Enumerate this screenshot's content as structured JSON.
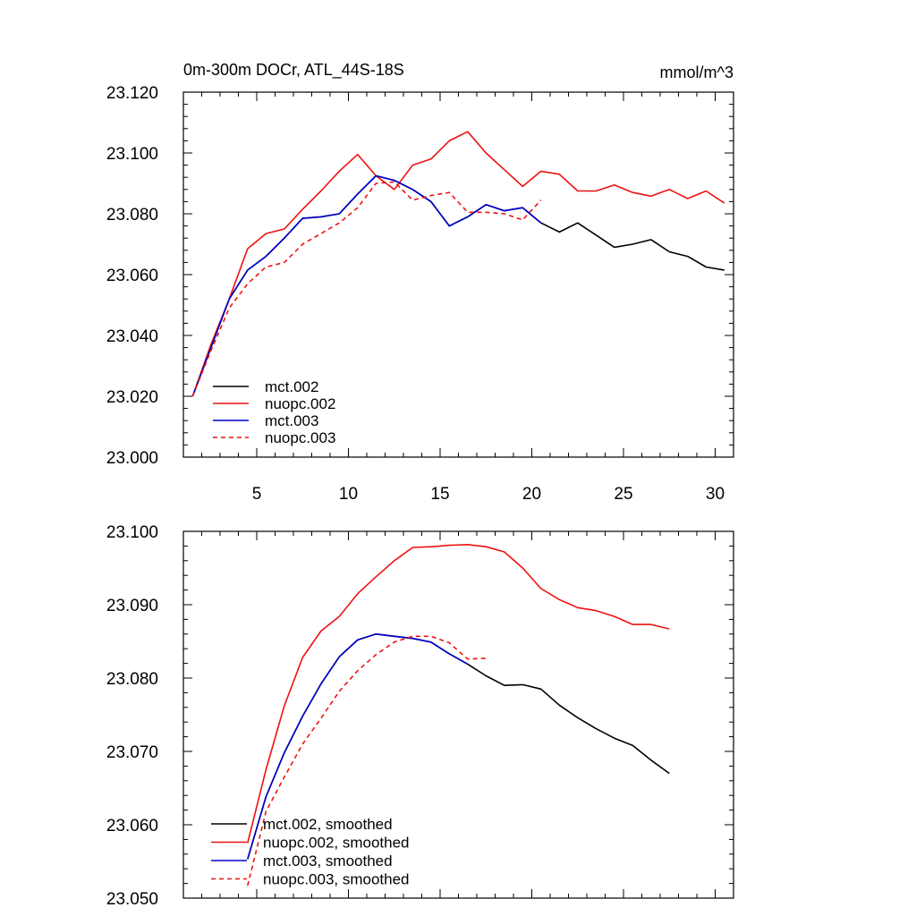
{
  "chart_data": [
    {
      "type": "line",
      "title_left": "0m-300m DOCr, ATL_44S-18S",
      "title_right": "mmol/m^3",
      "xlim": [
        1,
        31
      ],
      "ylim": [
        23.0,
        23.12
      ],
      "x_ticks": [
        5,
        10,
        15,
        20,
        25,
        30
      ],
      "x_tick_labels": [
        "5",
        "10",
        "15",
        "20",
        "25",
        "30"
      ],
      "y_ticks": [
        23.0,
        23.02,
        23.04,
        23.06,
        23.08,
        23.1,
        23.12
      ],
      "y_tick_labels": [
        "23.000",
        "23.020",
        "23.040",
        "23.060",
        "23.080",
        "23.100",
        "23.120"
      ],
      "series": [
        {
          "name": "mct.002",
          "color": "#000000",
          "dash": false,
          "x": [
            1.5,
            2.5,
            3.5,
            4.5,
            5.5,
            6.5,
            7.5,
            8.5,
            9.5,
            10.5,
            11.5,
            12.5,
            13.5,
            14.5,
            15.5,
            16.5,
            17.5,
            18.5,
            19.5,
            20.5,
            21.5,
            22.5,
            23.5,
            24.5,
            25.5,
            26.5,
            27.5,
            28.5,
            29.5,
            30.5
          ],
          "values": [
            23.02,
            23.036,
            23.052,
            23.0615,
            23.066,
            23.072,
            23.0785,
            23.079,
            23.08,
            23.0865,
            23.0925,
            23.091,
            23.088,
            23.084,
            23.076,
            23.079,
            23.083,
            23.081,
            23.082,
            23.077,
            23.074,
            23.077,
            23.073,
            23.069,
            23.07,
            23.0715,
            23.0675,
            23.066,
            23.0625,
            23.0615
          ]
        },
        {
          "name": "nuopc.002",
          "color": "#ee1111",
          "dash": false,
          "x": [
            1.5,
            2.5,
            3.5,
            4.5,
            5.5,
            6.5,
            7.5,
            8.5,
            9.5,
            10.5,
            11.5,
            12.5,
            13.5,
            14.5,
            15.5,
            16.5,
            17.5,
            18.5,
            19.5,
            20.5,
            21.5,
            22.5,
            23.5,
            24.5,
            25.5,
            26.5,
            27.5,
            28.5,
            29.5,
            30.5
          ],
          "values": [
            23.02,
            23.037,
            23.052,
            23.0685,
            23.0735,
            23.075,
            23.0815,
            23.0875,
            23.094,
            23.0995,
            23.0925,
            23.088,
            23.096,
            23.098,
            23.104,
            23.107,
            23.1,
            23.0945,
            23.089,
            23.094,
            23.093,
            23.0875,
            23.0875,
            23.0895,
            23.087,
            23.0858,
            23.088,
            23.085,
            23.0875,
            23.0835
          ]
        },
        {
          "name": "mct.003",
          "color": "#0000cc",
          "dash": false,
          "x": [
            1.5,
            2.5,
            3.5,
            4.5,
            5.5,
            6.5,
            7.5,
            8.5,
            9.5,
            10.5,
            11.5,
            12.5,
            13.5,
            14.5,
            15.5,
            16.5,
            17.5,
            18.5,
            19.5,
            20.5
          ],
          "values": [
            23.02,
            23.036,
            23.052,
            23.0615,
            23.066,
            23.072,
            23.0785,
            23.079,
            23.08,
            23.0865,
            23.0925,
            23.091,
            23.088,
            23.084,
            23.076,
            23.079,
            23.083,
            23.081,
            23.082,
            23.077
          ]
        },
        {
          "name": "nuopc.003",
          "color": "#ee1111",
          "dash": true,
          "x": [
            1.5,
            2.5,
            3.5,
            4.5,
            5.5,
            6.5,
            7.5,
            8.5,
            9.5,
            10.5,
            11.5,
            12.5,
            13.5,
            14.5,
            15.5,
            16.5,
            17.5,
            18.5,
            19.5,
            20.5
          ],
          "values": [
            23.02,
            23.035,
            23.049,
            23.057,
            23.0625,
            23.064,
            23.07,
            23.0735,
            23.077,
            23.082,
            23.09,
            23.0905,
            23.0845,
            23.086,
            23.087,
            23.0805,
            23.0805,
            23.08,
            23.078,
            23.0845
          ]
        }
      ]
    },
    {
      "type": "line",
      "xlim": [
        1,
        31
      ],
      "ylim": [
        23.05,
        23.1
      ],
      "x_ticks": [
        5,
        10,
        15,
        20,
        25,
        30
      ],
      "y_ticks": [
        23.05,
        23.06,
        23.07,
        23.08,
        23.09,
        23.1
      ],
      "y_tick_labels": [
        "23.050",
        "23.060",
        "23.070",
        "23.080",
        "23.090",
        "23.100"
      ],
      "series": [
        {
          "name": "mct.002, smoothed",
          "color": "#000000",
          "dash": false,
          "x": [
            4.5,
            5.5,
            6.5,
            7.5,
            8.5,
            9.5,
            10.5,
            11.5,
            12.5,
            13.5,
            14.5,
            15.5,
            16.5,
            17.5,
            18.5,
            19.5,
            20.5,
            21.5,
            22.5,
            23.5,
            24.5,
            25.5,
            26.5,
            27.5
          ],
          "values": [
            23.0553,
            23.0638,
            23.0698,
            23.0748,
            23.0792,
            23.0829,
            23.0852,
            23.086,
            23.0857,
            23.0854,
            23.0849,
            23.0833,
            23.0819,
            23.0803,
            23.079,
            23.0791,
            23.0785,
            23.0763,
            23.0746,
            23.0731,
            23.0718,
            23.0708,
            23.0688,
            23.067
          ]
        },
        {
          "name": "nuopc.002, smoothed",
          "color": "#ee1111",
          "dash": false,
          "x": [
            4.5,
            5.5,
            6.5,
            7.5,
            8.5,
            9.5,
            10.5,
            11.5,
            12.5,
            13.5,
            14.5,
            15.5,
            16.5,
            17.5,
            18.5,
            19.5,
            20.5,
            21.5,
            22.5,
            23.5,
            24.5,
            25.5,
            26.5,
            27.5
          ],
          "values": [
            23.0575,
            23.0675,
            23.0762,
            23.0828,
            23.0864,
            23.0884,
            23.0915,
            23.0938,
            23.096,
            23.0978,
            23.0979,
            23.0981,
            23.0982,
            23.0979,
            23.0972,
            23.095,
            23.0922,
            23.0907,
            23.0896,
            23.0892,
            23.0884,
            23.0873,
            23.0873,
            23.0867
          ]
        },
        {
          "name": "mct.003, smoothed",
          "color": "#0000cc",
          "dash": false,
          "x": [
            4.5,
            5.5,
            6.5,
            7.5,
            8.5,
            9.5,
            10.5,
            11.5,
            12.5,
            13.5,
            14.5,
            15.5,
            16.5
          ],
          "values": [
            23.0553,
            23.0638,
            23.0698,
            23.0748,
            23.0792,
            23.0829,
            23.0852,
            23.086,
            23.0857,
            23.0854,
            23.0849,
            23.0833,
            23.0819
          ]
        },
        {
          "name": "nuopc.003, smoothed",
          "color": "#ee1111",
          "dash": true,
          "x": [
            4.5,
            5.5,
            6.5,
            7.5,
            8.5,
            9.5,
            10.5,
            11.5,
            12.5,
            13.5,
            14.5,
            15.5,
            16.5,
            17.5
          ],
          "values": [
            23.0517,
            23.0618,
            23.0665,
            23.071,
            23.0745,
            23.0782,
            23.081,
            23.0832,
            23.0849,
            23.0857,
            23.0857,
            23.0848,
            23.0826,
            23.0827
          ]
        }
      ]
    }
  ]
}
